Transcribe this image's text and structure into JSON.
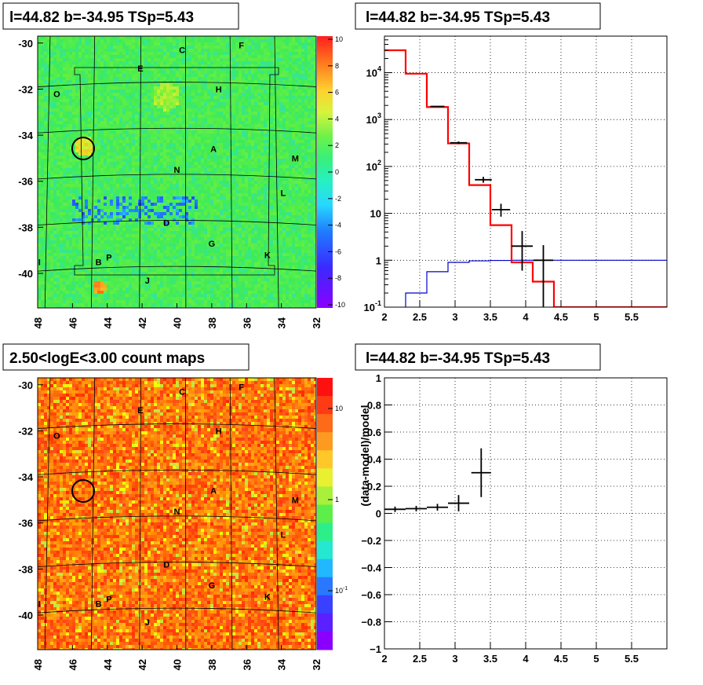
{
  "panels": {
    "tl_title": "l=44.82 b=-34.95 TSp=5.43",
    "tr_title": "l=44.82 b=-34.95 TSp=5.43",
    "bl_title": "2.50<logE<3.00 count maps",
    "br_title": "l=44.82 b=-34.95 TSp=5.43"
  },
  "colors": {
    "model_line": "#ff0000",
    "background_line": "#0000cc",
    "data_marks": "#000000"
  },
  "chart_data": [
    {
      "id": "tl_residual_map",
      "type": "heatmap",
      "title": "l=44.82 b=-34.95 TSp=5.43",
      "x_ticks": [
        "48",
        "46",
        "44",
        "42",
        "40",
        "38",
        "36",
        "34",
        "32"
      ],
      "y_ticks": [
        "-30",
        "-32",
        "-34",
        "-36",
        "-38",
        "-40"
      ],
      "xlim": [
        48,
        32
      ],
      "ylim": [
        -41.5,
        -29.7
      ],
      "colorbar": {
        "ticks": [
          "10",
          "8",
          "6",
          "4",
          "2",
          "0",
          "-2",
          "-4",
          "-6",
          "-8",
          "-10"
        ],
        "range": [
          -10,
          10
        ]
      },
      "source_labels": [
        {
          "name": "C",
          "l": 39.7,
          "b": -30.3
        },
        {
          "name": "F",
          "l": 36.3,
          "b": -30.1
        },
        {
          "name": "E",
          "l": 42.1,
          "b": -31.1
        },
        {
          "name": "H",
          "l": 37.6,
          "b": -32.0
        },
        {
          "name": "O",
          "l": 46.9,
          "b": -32.2
        },
        {
          "name": "A",
          "l": 37.9,
          "b": -34.6
        },
        {
          "name": "M",
          "l": 33.2,
          "b": -35.0
        },
        {
          "name": "N",
          "l": 40.0,
          "b": -35.5
        },
        {
          "name": "L",
          "l": 33.9,
          "b": -36.5
        },
        {
          "name": "D",
          "l": 40.6,
          "b": -37.8
        },
        {
          "name": "G",
          "l": 38.0,
          "b": -38.7
        },
        {
          "name": "K",
          "l": 34.8,
          "b": -39.2
        },
        {
          "name": "I",
          "l": 47.9,
          "b": -39.5
        },
        {
          "name": "B",
          "l": 44.5,
          "b": -39.5
        },
        {
          "name": "P",
          "l": 43.9,
          "b": -39.3
        },
        {
          "name": "J",
          "l": 41.7,
          "b": -40.3
        }
      ]
    },
    {
      "id": "tr_spectrum",
      "type": "line",
      "title": "l=44.82 b=-34.95 TSp=5.43",
      "x_ticks": [
        "2",
        "2.5",
        "3",
        "3.5",
        "4",
        "4.5",
        "5",
        "5.5"
      ],
      "y_ticks": [
        "10^-1",
        "1",
        "10",
        "10^2",
        "10^3",
        "10^4"
      ],
      "xlim": [
        2,
        6
      ],
      "ylim": [
        0.1,
        60000
      ],
      "ylog": true,
      "grid": true,
      "series": [
        {
          "bin_edges": [
            2.0,
            2.3,
            2.6,
            2.9,
            3.2,
            3.5,
            3.8,
            4.1,
            4.4,
            4.7,
            5.0,
            5.3,
            5.6,
            6.0
          ],
          "values": [
            30000,
            9500,
            1850,
            310,
            40,
            5.6,
            0.9,
            0.35,
            0.1,
            0.1,
            0.1,
            0.1,
            0.1
          ]
        },
        {
          "bin_edges": [
            2.0,
            2.3,
            2.6,
            2.9,
            3.2,
            3.5,
            3.8,
            4.1,
            4.4,
            4.7,
            5.0,
            5.3,
            5.6,
            6.0
          ],
          "values": [
            0.04,
            0.2,
            0.57,
            0.9,
            0.97,
            0.99,
            1.0,
            1.0,
            1.0,
            1.0,
            1.0,
            1.0,
            1.0
          ]
        }
      ],
      "points": [
        {
          "x": 2.75,
          "y": 1900,
          "xerr": 0.1,
          "ylo": 1850,
          "yhi": 1950
        },
        {
          "x": 3.05,
          "y": 320,
          "xerr": 0.12,
          "ylo": 300,
          "yhi": 340
        },
        {
          "x": 3.4,
          "y": 52,
          "xerr": 0.12,
          "ylo": 45,
          "yhi": 60
        },
        {
          "x": 3.65,
          "y": 12,
          "xerr": 0.13,
          "ylo": 8.5,
          "yhi": 16
        },
        {
          "x": 3.95,
          "y": 2.0,
          "xerr": 0.15,
          "ylo": 0.6,
          "yhi": 4.2
        },
        {
          "x": 4.25,
          "y": 1.0,
          "xerr": 0.14,
          "ylo": 0.1,
          "yhi": 2.1
        }
      ]
    },
    {
      "id": "bl_count_map",
      "type": "heatmap",
      "title": "2.50<logE<3.00 count maps",
      "x_ticks": [
        "48",
        "46",
        "44",
        "42",
        "40",
        "38",
        "36",
        "34",
        "32"
      ],
      "y_ticks": [
        "-30",
        "-32",
        "-34",
        "-36",
        "-38",
        "-40"
      ],
      "xlim": [
        48,
        32
      ],
      "ylim": [
        -41.5,
        -29.7
      ],
      "colorbar": {
        "ticks": [
          "10",
          "1",
          "10^-1"
        ],
        "log": true
      }
    },
    {
      "id": "br_residuals",
      "type": "scatter",
      "title": "l=44.82 b=-34.95 TSp=5.43",
      "x_ticks": [
        "2",
        "2.5",
        "3",
        "3.5",
        "4",
        "4.5",
        "5",
        "5.5"
      ],
      "y_ticks": [
        "1",
        "0.8",
        "0.6",
        "0.4",
        "0.2",
        "0",
        "−0.2",
        "−0.4",
        "−0.6",
        "−0.8",
        "−1"
      ],
      "xlabel": "",
      "ylabel": "(data-model)/model",
      "xlim": [
        2,
        6
      ],
      "ylim": [
        -1,
        1
      ],
      "grid": true,
      "points": [
        {
          "x": 2.15,
          "y": 0.03,
          "xerr": 0.15,
          "yerr": 0.02
        },
        {
          "x": 2.45,
          "y": 0.035,
          "xerr": 0.15,
          "yerr": 0.02
        },
        {
          "x": 2.75,
          "y": 0.045,
          "xerr": 0.15,
          "yerr": 0.025
        },
        {
          "x": 3.05,
          "y": 0.075,
          "xerr": 0.15,
          "yerr": 0.06
        },
        {
          "x": 3.37,
          "y": 0.3,
          "xerr": 0.14,
          "yerr": 0.18
        }
      ]
    }
  ]
}
